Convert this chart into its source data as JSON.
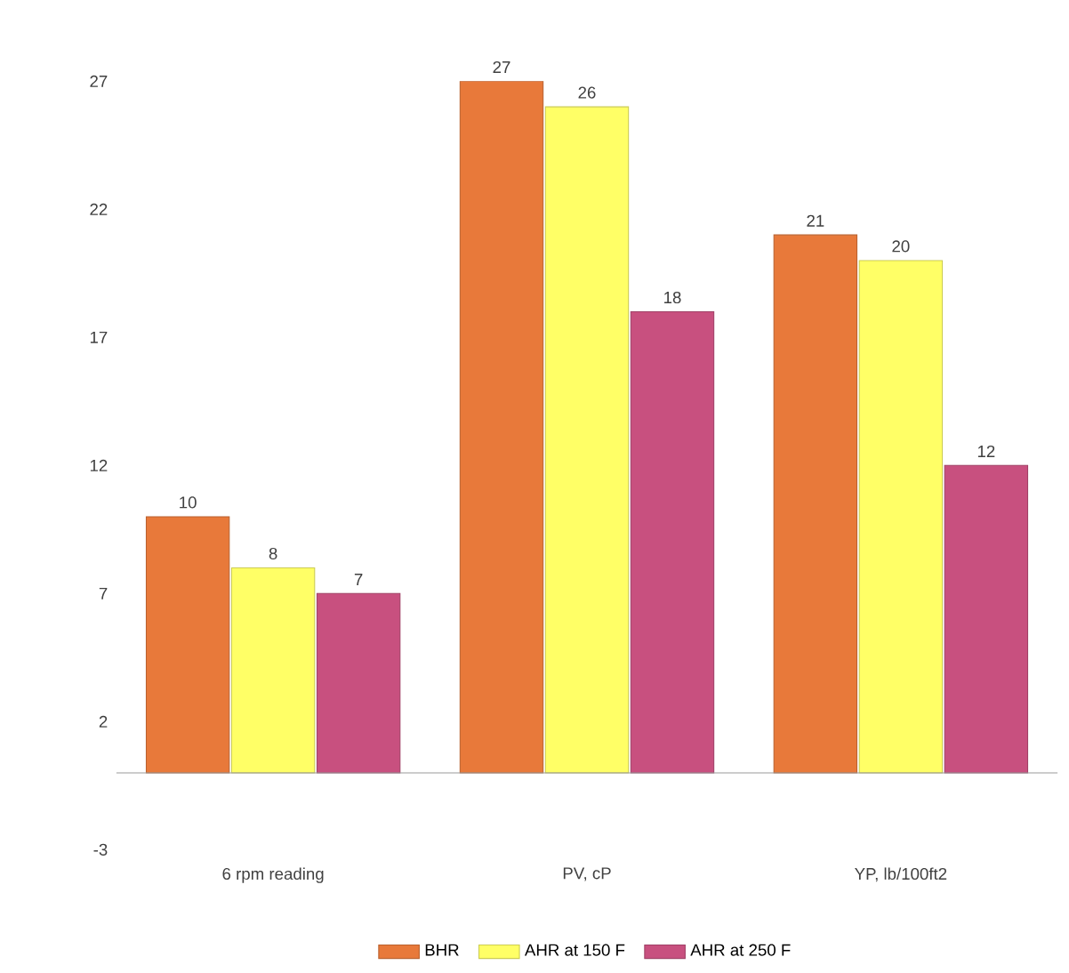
{
  "chart_data": {
    "type": "bar",
    "categories": [
      "6 rpm reading",
      "PV, cP",
      "YP, lb/100ft2"
    ],
    "series": [
      {
        "name": "BHR",
        "color": "#e8793a",
        "values": [
          10,
          27,
          21
        ]
      },
      {
        "name": "AHR at 150 F",
        "color": "#ffff66",
        "values": [
          8,
          26,
          20
        ]
      },
      {
        "name": "AHR at 250 F",
        "color": "#c8507f",
        "values": [
          7,
          18,
          12
        ]
      }
    ],
    "ylim": [
      -3,
      27
    ],
    "yticks": [
      -3,
      2,
      7,
      12,
      17,
      22,
      27
    ],
    "data_labels": true,
    "grid": false,
    "legend": "bottom"
  }
}
